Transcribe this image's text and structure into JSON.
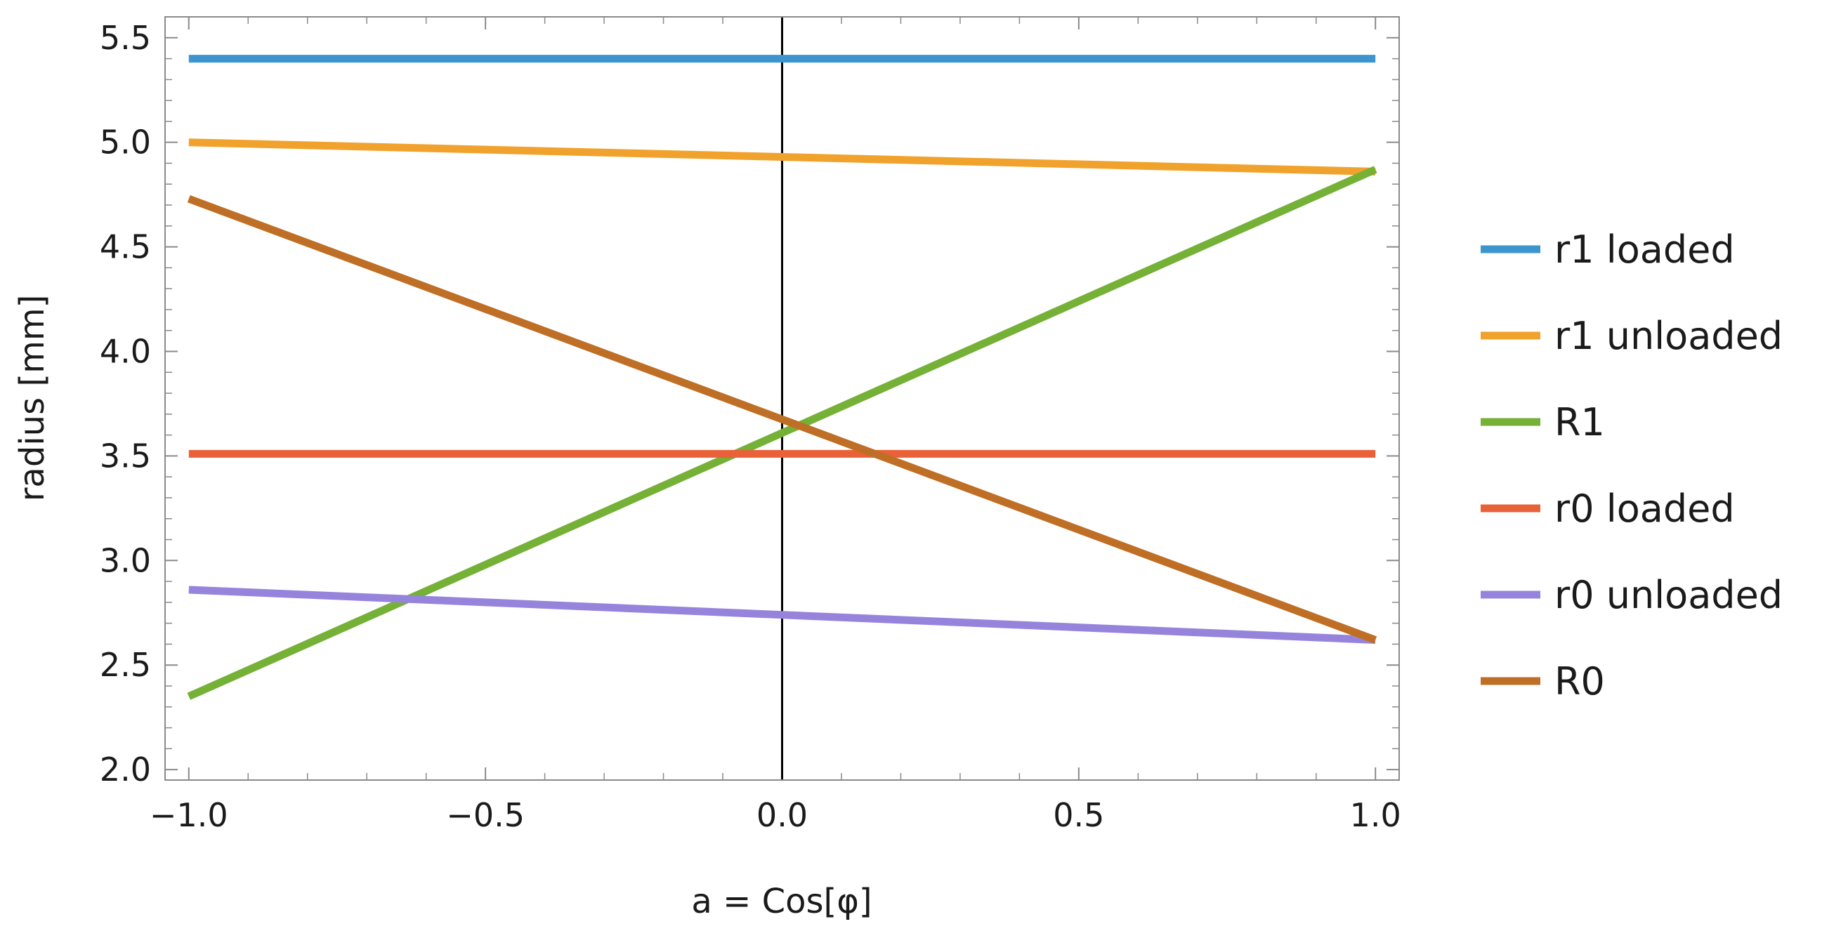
{
  "chart_data": {
    "type": "line",
    "title": "",
    "xlabel": "a = Cos[φ]",
    "ylabel": "radius  [mm]",
    "xlim": [
      -1.04,
      1.04
    ],
    "ylim": [
      1.95,
      5.6
    ],
    "x_ticks": [
      -1.0,
      -0.5,
      0.0,
      0.5,
      1.0
    ],
    "x_tick_labels": [
      "−1.0",
      "−0.5",
      "0.0",
      "0.5",
      "1.0"
    ],
    "y_ticks": [
      2.0,
      2.5,
      3.0,
      3.5,
      4.0,
      4.5,
      5.0,
      5.5
    ],
    "y_tick_labels": [
      "2.0",
      "2.5",
      "3.0",
      "3.5",
      "4.0",
      "4.5",
      "5.0",
      "5.5"
    ],
    "grid": false,
    "reference_line_x": 0.0,
    "legend_position": "right",
    "series": [
      {
        "name": "r1 loaded",
        "color": "#3d95cf",
        "x": [
          -1.0,
          1.0
        ],
        "values": [
          5.4,
          5.4
        ]
      },
      {
        "name": "r1 unloaded",
        "color": "#f0a22d",
        "x": [
          -1.0,
          1.0
        ],
        "values": [
          5.0,
          4.86
        ]
      },
      {
        "name": "R1",
        "color": "#74b136",
        "x": [
          -1.0,
          1.0
        ],
        "values": [
          2.35,
          4.87
        ]
      },
      {
        "name": "r0 loaded",
        "color": "#e96138",
        "x": [
          -1.0,
          1.0
        ],
        "values": [
          3.51,
          3.51
        ]
      },
      {
        "name": "r0 unloaded",
        "color": "#9684dc",
        "x": [
          -1.0,
          1.0
        ],
        "values": [
          2.86,
          2.62
        ]
      },
      {
        "name": "R0",
        "color": "#bf6f25",
        "x": [
          -1.0,
          1.0
        ],
        "values": [
          4.73,
          2.62
        ]
      }
    ]
  }
}
